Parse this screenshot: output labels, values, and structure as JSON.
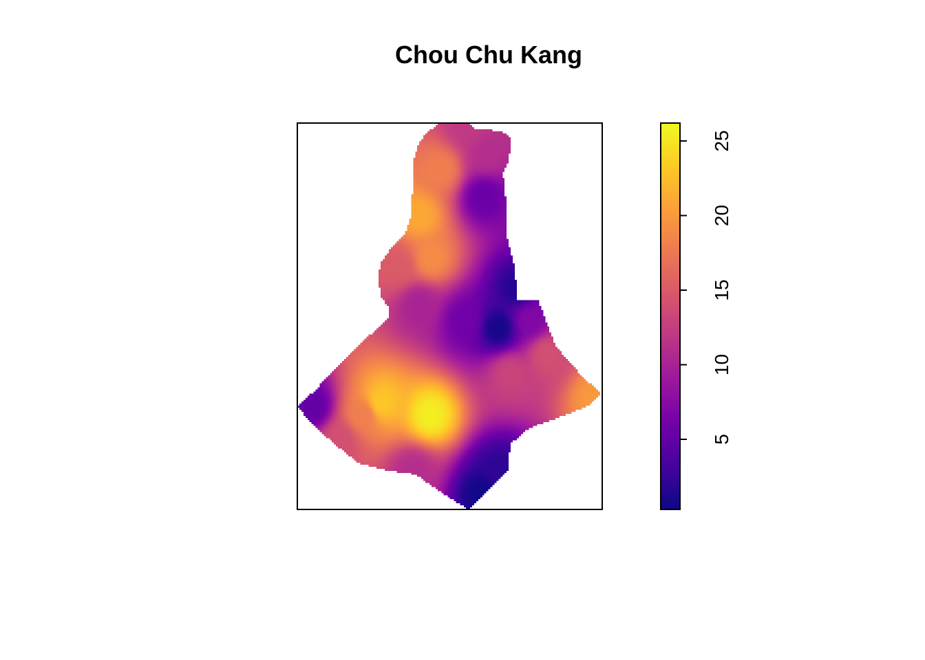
{
  "chart_data": {
    "type": "heatmap",
    "title": "Chou Chu Kang",
    "colormap": "plasma",
    "colorbar": {
      "min": 0.3,
      "max": 26.2,
      "ticks": [
        5,
        10,
        15,
        20,
        25
      ],
      "tick_labels": [
        "5",
        "10",
        "15",
        "20",
        "25"
      ],
      "placement": "right",
      "stops": [
        "#0d0887",
        "#46039f",
        "#7201a8",
        "#9c179e",
        "#bd3786",
        "#d8576b",
        "#ed7953",
        "#fb9f3a",
        "#fdca26",
        "#f0f921"
      ]
    },
    "hotspots": [
      {
        "x": 0.437,
        "y": 0.243,
        "value": 25.5
      },
      {
        "x": 0.275,
        "y": 0.276,
        "value": 23
      },
      {
        "x": 0.215,
        "y": 0.245,
        "value": 18
      },
      {
        "x": 0.05,
        "y": 0.265,
        "value": 5
      },
      {
        "x": 0.14,
        "y": 0.18,
        "value": 14
      },
      {
        "x": 0.38,
        "y": 0.1,
        "value": 11
      },
      {
        "x": 0.61,
        "y": 0.04,
        "value": 0.5
      },
      {
        "x": 0.66,
        "y": 0.1,
        "value": 2
      },
      {
        "x": 0.98,
        "y": 0.29,
        "value": 20
      },
      {
        "x": 0.82,
        "y": 0.4,
        "value": 14
      },
      {
        "x": 0.7,
        "y": 0.35,
        "value": 13
      },
      {
        "x": 0.76,
        "y": 0.49,
        "value": 7
      },
      {
        "x": 0.72,
        "y": 0.57,
        "value": 1.5
      },
      {
        "x": 0.66,
        "y": 0.47,
        "value": 0.8
      },
      {
        "x": 0.55,
        "y": 0.49,
        "value": 6
      },
      {
        "x": 0.4,
        "y": 0.53,
        "value": 10
      },
      {
        "x": 0.33,
        "y": 0.63,
        "value": 15
      },
      {
        "x": 0.44,
        "y": 0.65,
        "value": 19
      },
      {
        "x": 0.4,
        "y": 0.76,
        "value": 21
      },
      {
        "x": 0.47,
        "y": 0.88,
        "value": 18
      },
      {
        "x": 0.61,
        "y": 0.81,
        "value": 5.5
      },
      {
        "x": 0.62,
        "y": 0.92,
        "value": 11
      },
      {
        "x": 0.56,
        "y": 0.99,
        "value": 12
      }
    ]
  }
}
